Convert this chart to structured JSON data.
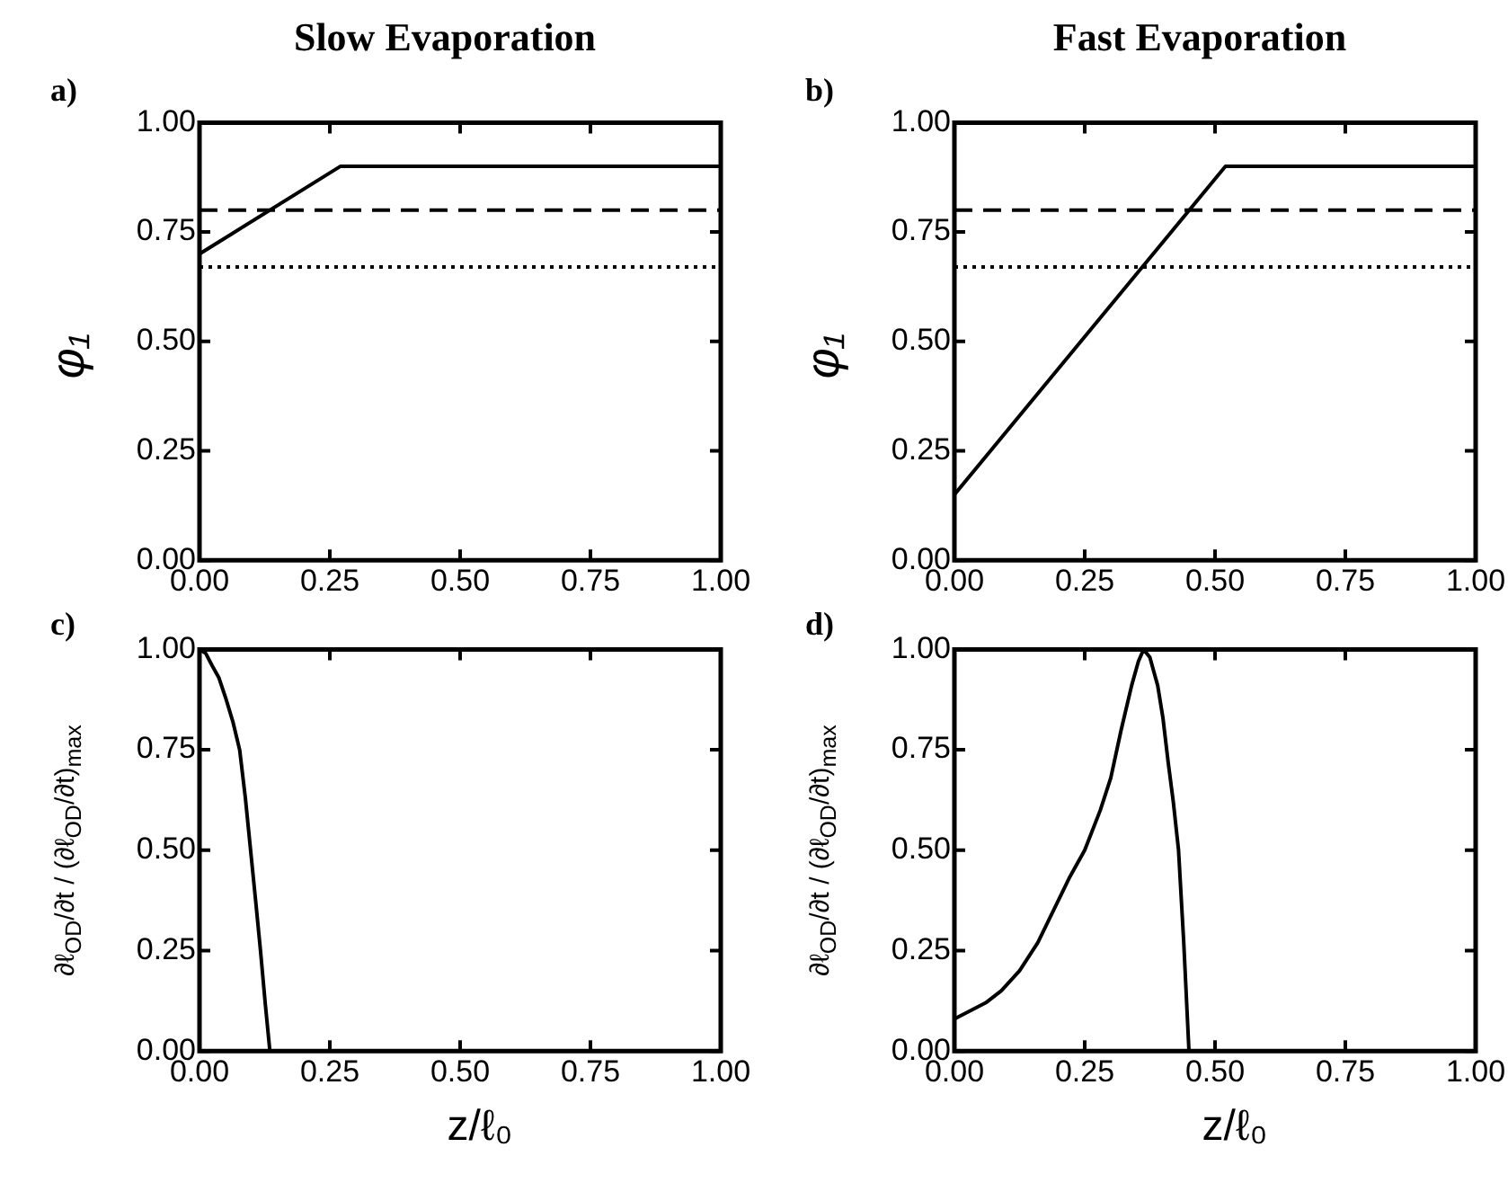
{
  "chart_data": [
    {
      "type": "line",
      "title": "Slow Evaporation",
      "ylabel": "φ₁",
      "annotations": [
        "a)"
      ],
      "x": [
        0,
        0.27,
        1
      ],
      "grid": false,
      "marker": "none",
      "line_style": "solid",
      "series": [
        {
          "color": "#000000",
          "values": [
            0.7,
            0.9,
            0.9
          ]
        }
      ],
      "ref_lines": [
        {
          "axis": "y",
          "value": 0.8,
          "color": "#000000",
          "line_style": "dashed"
        },
        {
          "axis": "y",
          "value": 0.67,
          "color": "#000000",
          "line_style": "dotted"
        }
      ],
      "xlim": [
        0,
        1
      ],
      "xticks": [
        {
          "value": 0,
          "label": "0.00"
        },
        {
          "value": 0.25,
          "label": "0.25"
        },
        {
          "value": 0.5,
          "label": "0.50"
        },
        {
          "value": 0.75,
          "label": "0.75"
        },
        {
          "value": 1,
          "label": "1.00"
        }
      ],
      "ylim": [
        0,
        1
      ],
      "yticks": [
        {
          "value": 0,
          "label": "0.00"
        },
        {
          "value": 0.25,
          "label": "0.25"
        },
        {
          "value": 0.5,
          "label": "0.50"
        },
        {
          "value": 0.75,
          "label": "0.75"
        },
        {
          "value": 1,
          "label": "1.00"
        }
      ]
    },
    {
      "type": "line",
      "title": "Fast Evaporation",
      "ylabel": "φ₁",
      "annotations": [
        "b)"
      ],
      "x": [
        0,
        0.52,
        1
      ],
      "grid": false,
      "marker": "none",
      "line_style": "solid",
      "series": [
        {
          "color": "#000000",
          "values": [
            0.15,
            0.9,
            0.9
          ]
        }
      ],
      "ref_lines": [
        {
          "axis": "y",
          "value": 0.8,
          "color": "#000000",
          "line_style": "dashed"
        },
        {
          "axis": "y",
          "value": 0.67,
          "color": "#000000",
          "line_style": "dotted"
        }
      ],
      "xlim": [
        0,
        1
      ],
      "xticks": [
        {
          "value": 0,
          "label": "0.00"
        },
        {
          "value": 0.25,
          "label": "0.25"
        },
        {
          "value": 0.5,
          "label": "0.50"
        },
        {
          "value": 0.75,
          "label": "0.75"
        },
        {
          "value": 1,
          "label": "1.00"
        }
      ],
      "ylim": [
        0,
        1
      ],
      "yticks": [
        {
          "value": 0,
          "label": "0.00"
        },
        {
          "value": 0.25,
          "label": "0.25"
        },
        {
          "value": 0.5,
          "label": "0.50"
        },
        {
          "value": 0.75,
          "label": "0.75"
        },
        {
          "value": 1,
          "label": "1.00"
        }
      ]
    },
    {
      "type": "line",
      "xlabel": "z/ℓ₀",
      "ylabel": "∂ℓ$_{OD}$/∂t / (∂ℓ$_{OD}$/∂t)$_{max}$",
      "annotations": [
        "c)"
      ],
      "x": [
        0,
        0.012,
        0.024,
        0.037,
        0.05,
        0.064,
        0.077,
        0.088,
        0.098,
        0.108,
        0.117,
        0.126,
        0.135
      ],
      "grid": false,
      "marker": "none",
      "line_style": "solid",
      "series": [
        {
          "color": "#000000",
          "values": [
            1.0,
            0.99,
            0.96,
            0.93,
            0.88,
            0.82,
            0.75,
            0.63,
            0.5,
            0.37,
            0.25,
            0.12,
            0
          ]
        }
      ],
      "xlim": [
        0,
        1
      ],
      "xticks": [
        {
          "value": 0,
          "label": "0.00"
        },
        {
          "value": 0.25,
          "label": "0.25"
        },
        {
          "value": 0.5,
          "label": "0.50"
        },
        {
          "value": 0.75,
          "label": "0.75"
        },
        {
          "value": 1,
          "label": "1.00"
        }
      ],
      "ylim": [
        0,
        1
      ],
      "yticks": [
        {
          "value": 0,
          "label": "0.00"
        },
        {
          "value": 0.25,
          "label": "0.25"
        },
        {
          "value": 0.5,
          "label": "0.50"
        },
        {
          "value": 0.75,
          "label": "0.75"
        },
        {
          "value": 1,
          "label": "1.00"
        }
      ]
    },
    {
      "type": "line",
      "xlabel": "z/ℓ₀",
      "ylabel": "∂ℓ$_{OD}$/∂t / (∂ℓ$_{OD}$/∂t)$_{max}$",
      "annotations": [
        "d)"
      ],
      "x": [
        0,
        0.03,
        0.06,
        0.09,
        0.125,
        0.16,
        0.19,
        0.22,
        0.25,
        0.28,
        0.3,
        0.32,
        0.34,
        0.353,
        0.363,
        0.375,
        0.39,
        0.4,
        0.41,
        0.42,
        0.43,
        0.44,
        0.45
      ],
      "grid": false,
      "marker": "none",
      "line_style": "solid",
      "series": [
        {
          "color": "#000000",
          "values": [
            0.08,
            0.1,
            0.12,
            0.15,
            0.2,
            0.27,
            0.35,
            0.43,
            0.5,
            0.6,
            0.68,
            0.8,
            0.91,
            0.97,
            1.0,
            0.98,
            0.91,
            0.83,
            0.72,
            0.62,
            0.5,
            0.27,
            0
          ]
        }
      ],
      "xlim": [
        0,
        1
      ],
      "xticks": [
        {
          "value": 0,
          "label": "0.00"
        },
        {
          "value": 0.25,
          "label": "0.25"
        },
        {
          "value": 0.5,
          "label": "0.50"
        },
        {
          "value": 0.75,
          "label": "0.75"
        },
        {
          "value": 1,
          "label": "1.00"
        }
      ],
      "ylim": [
        0,
        1
      ],
      "yticks": [
        {
          "value": 0,
          "label": "0.00"
        },
        {
          "value": 0.25,
          "label": "0.25"
        },
        {
          "value": 0.5,
          "label": "0.50"
        },
        {
          "value": 0.75,
          "label": "0.75"
        },
        {
          "value": 1,
          "label": "1.00"
        }
      ]
    }
  ]
}
